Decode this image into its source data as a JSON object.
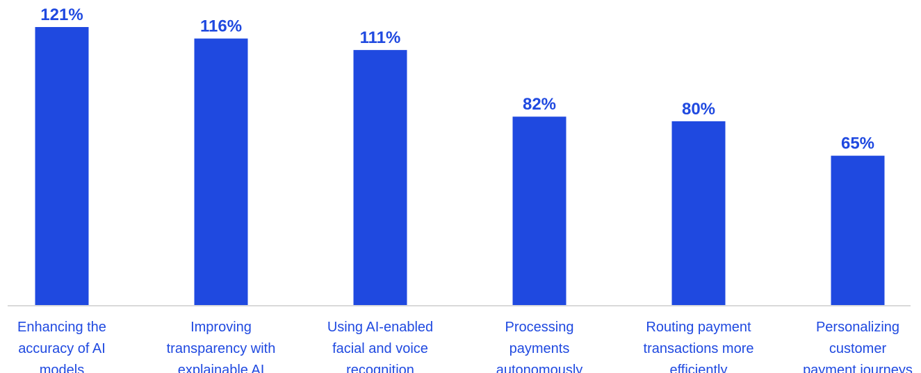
{
  "colors": {
    "bar": "#1F49E0",
    "value_label": "#1F49E0",
    "category_label": "#1F49E0",
    "axis_line": "#D9D9D9"
  },
  "chart_data": {
    "type": "bar",
    "categories": [
      "Enhancing the accuracy of AI models",
      "Improving transparency with explainable AI",
      "Using AI-enabled facial and voice recognition",
      "Processing payments autonomously",
      "Routing payment transactions more efficiently",
      "Personalizing customer payment journeys"
    ],
    "category_lines": [
      [
        "Enhancing the",
        "accuracy of AI",
        "models"
      ],
      [
        "Improving",
        "transparency with",
        "explainable AI"
      ],
      [
        "Using AI-enabled",
        "facial and voice",
        "recognition"
      ],
      [
        "Processing",
        "payments",
        "autonomously"
      ],
      [
        "Routing payment",
        "transactions more",
        "efficiently"
      ],
      [
        "Personalizing",
        "customer",
        "payment journeys"
      ]
    ],
    "values": [
      121,
      116,
      111,
      82,
      80,
      65
    ],
    "value_labels": [
      "121%",
      "116%",
      "111%",
      "82%",
      "80%",
      "65%"
    ],
    "unit": "%",
    "ylim": [
      0,
      121
    ],
    "grid": false,
    "legend": "none"
  }
}
